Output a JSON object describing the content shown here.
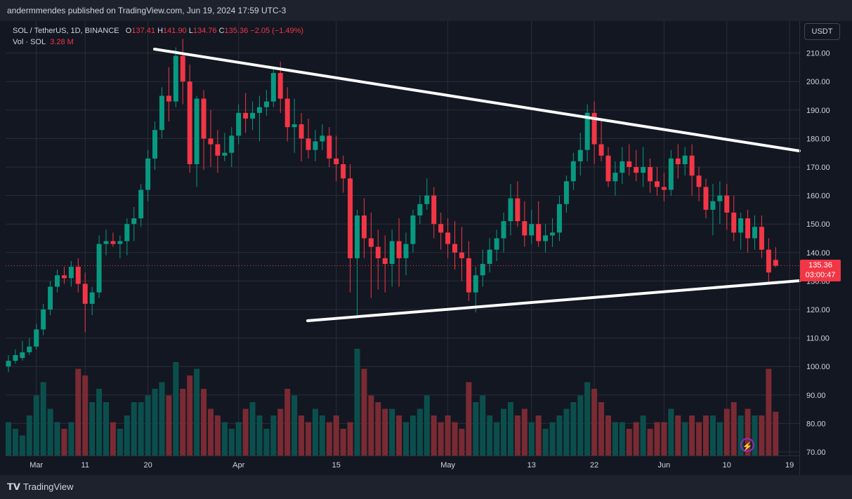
{
  "header": {
    "publisher": "andermmendes published on TradingView.com, Jun 19, 2024 17:59 UTC-3"
  },
  "legend": {
    "symbol": "SOL / TetherUS, 1D, BINANCE",
    "open_label": "O",
    "open": "137.41",
    "high_label": "H",
    "high": "141.90",
    "low_label": "L",
    "low": "134.76",
    "close_label": "C",
    "close": "135.36",
    "change": "−2.05 (−1.49%)",
    "vol_label": "Vol · SOL",
    "vol_value": "3.28 M"
  },
  "price_scale": {
    "currency": "USDT",
    "current_price": "135.36",
    "countdown": "03:00:47"
  },
  "footer": {
    "brand": "TradingView"
  },
  "colors": {
    "up": "#089981",
    "down": "#f23645",
    "background": "#131722",
    "grid": "#2a2e39",
    "trendline": "#ffffff"
  },
  "chart_data": {
    "type": "candlestick",
    "symbol": "SOL / TetherUS",
    "interval": "1D",
    "ylim": [
      70,
      215
    ],
    "yticks": [
      70,
      80,
      90,
      100,
      110,
      120,
      130,
      140,
      150,
      160,
      170,
      180,
      190,
      200,
      210
    ],
    "x_ticks": [
      {
        "label": "Mar",
        "day": 4
      },
      {
        "label": "11",
        "day": 11
      },
      {
        "label": "20",
        "day": 20
      },
      {
        "label": "Apr",
        "day": 33
      },
      {
        "label": "15",
        "day": 47
      },
      {
        "label": "May",
        "day": 63
      },
      {
        "label": "13",
        "day": 75
      },
      {
        "label": "22",
        "day": 84
      },
      {
        "label": "Jun",
        "day": 94
      },
      {
        "label": "10",
        "day": 103
      },
      {
        "label": "19",
        "day": 112
      }
    ],
    "candles": [
      [
        100,
        104,
        98,
        102,
        2.5
      ],
      [
        102,
        106,
        101,
        104,
        2.0
      ],
      [
        103,
        109,
        102,
        105,
        1.5
      ],
      [
        105,
        110,
        104,
        107,
        3.0
      ],
      [
        107,
        115,
        106,
        113,
        4.5
      ],
      [
        113,
        122,
        111,
        120,
        5.5
      ],
      [
        120,
        130,
        118,
        128,
        3.5
      ],
      [
        128,
        134,
        126,
        132,
        2.5
      ],
      [
        132,
        135,
        129,
        131,
        2.0
      ],
      [
        131,
        137,
        128,
        135,
        2.5
      ],
      [
        135,
        138,
        126,
        129,
        6.5
      ],
      [
        129,
        133,
        112,
        122,
        6.0
      ],
      [
        122,
        128,
        118,
        126,
        4.0
      ],
      [
        126,
        146,
        124,
        143,
        5.0
      ],
      [
        143,
        148,
        139,
        144,
        4.0
      ],
      [
        144,
        147,
        142,
        143,
        2.5
      ],
      [
        143,
        146,
        138,
        144,
        2.0
      ],
      [
        144,
        152,
        139,
        150,
        3.0
      ],
      [
        150,
        156,
        144,
        152,
        4.0
      ],
      [
        152,
        164,
        149,
        162,
        4.0
      ],
      [
        162,
        176,
        158,
        173,
        4.5
      ],
      [
        173,
        186,
        169,
        183,
        5.0
      ],
      [
        183,
        198,
        180,
        195,
        5.5
      ],
      [
        195,
        205,
        186,
        193,
        4.5
      ],
      [
        193,
        212,
        191,
        209,
        7.0
      ],
      [
        209,
        215,
        192,
        200,
        5.0
      ],
      [
        200,
        206,
        168,
        171,
        6.0
      ],
      [
        171,
        195,
        163,
        194,
        6.5
      ],
      [
        194,
        197,
        169,
        180,
        5.0
      ],
      [
        180,
        190,
        170,
        178,
        3.5
      ],
      [
        178,
        183,
        168,
        174,
        3.0
      ],
      [
        174,
        182,
        172,
        175,
        2.5
      ],
      [
        175,
        184,
        170,
        181,
        2.0
      ],
      [
        181,
        192,
        178,
        189,
        2.5
      ],
      [
        189,
        196,
        182,
        187,
        3.5
      ],
      [
        187,
        193,
        183,
        189,
        4.0
      ],
      [
        189,
        195,
        179,
        191,
        3.0
      ],
      [
        191,
        197,
        188,
        193,
        2.0
      ],
      [
        193,
        205,
        191,
        203,
        3.0
      ],
      [
        203,
        207,
        189,
        194,
        3.5
      ],
      [
        194,
        198,
        179,
        184,
        5.0
      ],
      [
        184,
        194,
        175,
        185,
        4.5
      ],
      [
        185,
        189,
        172,
        180,
        3.0
      ],
      [
        180,
        187,
        173,
        176,
        2.5
      ],
      [
        176,
        183,
        172,
        179,
        3.5
      ],
      [
        179,
        185,
        176,
        181,
        3.0
      ],
      [
        181,
        184,
        170,
        173,
        2.5
      ],
      [
        173,
        181,
        165,
        171,
        3.0
      ],
      [
        171,
        174,
        161,
        166,
        2.0
      ],
      [
        166,
        171,
        126,
        138,
        2.5
      ],
      [
        138,
        155,
        118,
        153,
        8.0
      ],
      [
        153,
        159,
        138,
        145,
        6.5
      ],
      [
        145,
        154,
        124,
        142,
        4.5
      ],
      [
        142,
        148,
        127,
        138,
        4.0
      ],
      [
        138,
        146,
        126,
        136,
        3.5
      ],
      [
        136,
        148,
        128,
        144,
        3.5
      ],
      [
        144,
        152,
        128,
        138,
        3.0
      ],
      [
        138,
        147,
        132,
        143,
        2.5
      ],
      [
        143,
        155,
        140,
        153,
        3.0
      ],
      [
        153,
        160,
        150,
        157,
        3.5
      ],
      [
        157,
        166,
        155,
        160,
        4.5
      ],
      [
        160,
        163,
        145,
        150,
        3.0
      ],
      [
        150,
        154,
        141,
        147,
        2.5
      ],
      [
        147,
        152,
        138,
        143,
        3.0
      ],
      [
        143,
        151,
        134,
        140,
        2.5
      ],
      [
        140,
        149,
        130,
        138,
        2.0
      ],
      [
        138,
        144,
        123,
        126,
        5.5
      ],
      [
        126,
        135,
        119,
        132,
        4.0
      ],
      [
        132,
        141,
        128,
        136,
        4.5
      ],
      [
        136,
        145,
        133,
        141,
        3.0
      ],
      [
        141,
        148,
        137,
        145,
        2.5
      ],
      [
        145,
        154,
        140,
        151,
        3.5
      ],
      [
        151,
        164,
        146,
        159,
        4.0
      ],
      [
        159,
        165,
        149,
        151,
        3.0
      ],
      [
        151,
        158,
        142,
        146,
        3.5
      ],
      [
        146,
        155,
        143,
        150,
        2.5
      ],
      [
        150,
        158,
        142,
        144,
        3.0
      ],
      [
        144,
        150,
        140,
        146,
        2.0
      ],
      [
        146,
        152,
        142,
        147,
        2.5
      ],
      [
        147,
        160,
        144,
        157,
        3.0
      ],
      [
        157,
        167,
        154,
        165,
        3.5
      ],
      [
        165,
        175,
        162,
        172,
        4.0
      ],
      [
        172,
        182,
        167,
        176,
        4.5
      ],
      [
        176,
        192,
        172,
        189,
        5.5
      ],
      [
        189,
        193,
        171,
        178,
        5.0
      ],
      [
        178,
        186,
        172,
        174,
        4.0
      ],
      [
        174,
        177,
        163,
        165,
        3.0
      ],
      [
        165,
        172,
        160,
        168,
        2.5
      ],
      [
        168,
        177,
        164,
        172,
        2.5
      ],
      [
        172,
        178,
        167,
        170,
        2.0
      ],
      [
        170,
        176,
        165,
        168,
        2.5
      ],
      [
        168,
        177,
        163,
        170,
        3.0
      ],
      [
        170,
        173,
        161,
        165,
        2.0
      ],
      [
        165,
        170,
        160,
        163,
        2.5
      ],
      [
        163,
        168,
        158,
        162,
        2.5
      ],
      [
        162,
        176,
        160,
        173,
        3.5
      ],
      [
        173,
        178,
        166,
        171,
        3.0
      ],
      [
        171,
        177,
        167,
        174,
        2.5
      ],
      [
        174,
        178,
        160,
        167,
        3.0
      ],
      [
        167,
        170,
        158,
        163,
        2.5
      ],
      [
        163,
        166,
        152,
        155,
        3.0
      ],
      [
        155,
        164,
        146,
        158,
        3.0
      ],
      [
        158,
        165,
        150,
        160,
        2.5
      ],
      [
        160,
        164,
        148,
        154,
        3.5
      ],
      [
        154,
        160,
        144,
        147,
        4.0
      ],
      [
        147,
        154,
        141,
        152,
        3.0
      ],
      [
        152,
        155,
        140,
        145,
        3.5
      ],
      [
        145,
        153,
        141,
        149,
        3.0
      ],
      [
        149,
        153,
        138,
        141,
        3.0
      ],
      [
        141,
        145,
        129,
        133,
        6.5
      ],
      [
        137.41,
        141.9,
        134.76,
        135.36,
        3.28
      ]
    ]
  }
}
